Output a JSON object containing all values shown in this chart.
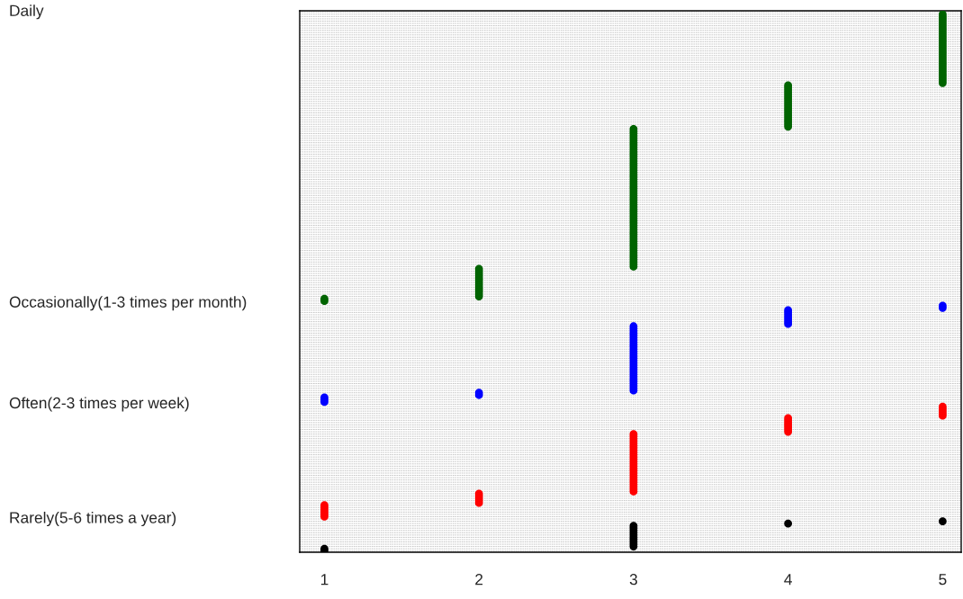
{
  "chart_data": {
    "type": "scatter",
    "orientation": "horizontal",
    "marker": "circle",
    "grid": "y",
    "xlim": [
      0.84,
      5.12
    ],
    "xticks": [
      1,
      2,
      3,
      4,
      5
    ],
    "categories": [
      "Daily",
      null,
      null,
      null,
      null,
      null,
      null,
      null,
      null,
      null,
      null,
      null,
      null,
      null,
      null,
      null,
      null,
      null,
      null,
      null,
      null,
      null,
      null,
      null,
      null,
      null,
      null,
      null,
      null,
      null,
      null,
      null,
      null,
      null,
      null,
      null,
      null,
      null,
      null,
      null,
      null,
      null,
      null,
      null,
      null,
      null,
      null,
      null,
      null,
      null,
      null,
      null,
      null,
      null,
      null,
      null,
      null,
      null,
      null,
      null,
      null,
      null,
      null,
      null,
      null,
      null,
      null,
      null,
      null,
      null,
      null,
      null,
      null,
      null,
      null,
      null,
      null,
      null,
      null,
      null,
      null,
      null,
      null,
      null,
      null,
      null,
      null,
      null,
      null,
      null,
      null,
      null,
      null,
      null,
      null,
      null,
      null,
      null,
      null,
      null,
      null,
      null,
      null,
      null,
      null,
      null,
      null,
      null,
      null,
      null,
      null,
      null,
      null,
      null,
      null,
      null,
      null,
      null,
      null,
      null,
      null,
      null,
      null,
      null,
      null,
      null,
      null,
      "Occasionally(1-3 times per month)",
      null,
      null,
      null,
      null,
      null,
      null,
      null,
      null,
      null,
      null,
      null,
      null,
      null,
      null,
      null,
      null,
      null,
      null,
      null,
      null,
      null,
      null,
      null,
      null,
      null,
      null,
      null,
      null,
      null,
      null,
      null,
      null,
      null,
      null,
      null,
      null,
      null,
      null,
      null,
      null,
      null,
      null,
      null,
      "Often(2-3 times per week)",
      null,
      null,
      null,
      null,
      null,
      null,
      null,
      null,
      null,
      null,
      null,
      null,
      null,
      null,
      null,
      null,
      null,
      null,
      null,
      null,
      null,
      null,
      null,
      null,
      null,
      null,
      null,
      null,
      null,
      null,
      null,
      null,
      null,
      null,
      null,
      null,
      null,
      null,
      null,
      null,
      null,
      null,
      null,
      null,
      null,
      null,
      null,
      null,
      null,
      "Rarely(5-6 times a year)",
      null,
      null,
      null,
      null,
      null,
      null,
      null,
      null,
      null,
      null,
      null,
      null,
      null,
      null
    ],
    "values": [
      null,
      5,
      5,
      5,
      5,
      5,
      5,
      5,
      5,
      5,
      5,
      5,
      5,
      5,
      5,
      5,
      5,
      5,
      5,
      5,
      5,
      5,
      5,
      5,
      5,
      5,
      5,
      5,
      5,
      5,
      5,
      5,
      4,
      4,
      4,
      4,
      4,
      4,
      4,
      4,
      4,
      4,
      4,
      4,
      4,
      4,
      4,
      4,
      4,
      4,
      4,
      3,
      3,
      3,
      3,
      3,
      3,
      3,
      3,
      3,
      3,
      3,
      3,
      3,
      3,
      3,
      3,
      3,
      3,
      3,
      3,
      3,
      3,
      3,
      3,
      3,
      3,
      3,
      3,
      3,
      3,
      3,
      3,
      3,
      3,
      3,
      3,
      3,
      3,
      3,
      3,
      3,
      3,
      3,
      3,
      3,
      3,
      3,
      3,
      3,
      3,
      3,
      3,
      3,
      3,
      3,
      3,
      3,
      3,
      3,
      3,
      3,
      2,
      2,
      2,
      2,
      2,
      2,
      2,
      2,
      2,
      2,
      2,
      2,
      2,
      1,
      1,
      null,
      5,
      5,
      4,
      4,
      4,
      4,
      4,
      4,
      4,
      3,
      3,
      3,
      3,
      3,
      3,
      3,
      3,
      3,
      3,
      3,
      3,
      3,
      3,
      3,
      3,
      3,
      3,
      3,
      3,
      3,
      3,
      3,
      3,
      3,
      3,
      3,
      3,
      3,
      2,
      2,
      1,
      1,
      1,
      null,
      5,
      5,
      5,
      5,
      5,
      4,
      4,
      4,
      4,
      4,
      4,
      4,
      3,
      3,
      3,
      3,
      3,
      3,
      3,
      3,
      3,
      3,
      3,
      3,
      3,
      3,
      3,
      3,
      3,
      3,
      3,
      3,
      3,
      3,
      3,
      3,
      3,
      3,
      2,
      2,
      2,
      2,
      2,
      1,
      1,
      1,
      1,
      1,
      1,
      null,
      5,
      4,
      3,
      3,
      3,
      3,
      3,
      3,
      3,
      3,
      3,
      3,
      1,
      1
    ],
    "colors": [
      null,
      "#006400",
      "#006400",
      "#006400",
      "#006400",
      "#006400",
      "#006400",
      "#006400",
      "#006400",
      "#006400",
      "#006400",
      "#006400",
      "#006400",
      "#006400",
      "#006400",
      "#006400",
      "#006400",
      "#006400",
      "#006400",
      "#006400",
      "#006400",
      "#006400",
      "#006400",
      "#006400",
      "#006400",
      "#006400",
      "#006400",
      "#006400",
      "#006400",
      "#006400",
      "#006400",
      "#006400",
      "#006400",
      "#006400",
      "#006400",
      "#006400",
      "#006400",
      "#006400",
      "#006400",
      "#006400",
      "#006400",
      "#006400",
      "#006400",
      "#006400",
      "#006400",
      "#006400",
      "#006400",
      "#006400",
      "#006400",
      "#006400",
      "#006400",
      "#006400",
      "#006400",
      "#006400",
      "#006400",
      "#006400",
      "#006400",
      "#006400",
      "#006400",
      "#006400",
      "#006400",
      "#006400",
      "#006400",
      "#006400",
      "#006400",
      "#006400",
      "#006400",
      "#006400",
      "#006400",
      "#006400",
      "#006400",
      "#006400",
      "#006400",
      "#006400",
      "#006400",
      "#006400",
      "#006400",
      "#006400",
      "#006400",
      "#006400",
      "#006400",
      "#006400",
      "#006400",
      "#006400",
      "#006400",
      "#006400",
      "#006400",
      "#006400",
      "#006400",
      "#006400",
      "#006400",
      "#006400",
      "#006400",
      "#006400",
      "#006400",
      "#006400",
      "#006400",
      "#006400",
      "#006400",
      "#006400",
      "#006400",
      "#006400",
      "#006400",
      "#006400",
      "#006400",
      "#006400",
      "#006400",
      "#006400",
      "#006400",
      "#006400",
      "#006400",
      "#006400",
      "#006400",
      "#006400",
      "#006400",
      "#006400",
      "#006400",
      "#006400",
      "#006400",
      "#006400",
      "#006400",
      "#006400",
      "#006400",
      "#006400",
      "#006400",
      "#006400",
      "#006400",
      null,
      "#0000ff",
      "#0000ff",
      "#0000ff",
      "#0000ff",
      "#0000ff",
      "#0000ff",
      "#0000ff",
      "#0000ff",
      "#0000ff",
      "#0000ff",
      "#0000ff",
      "#0000ff",
      "#0000ff",
      "#0000ff",
      "#0000ff",
      "#0000ff",
      "#0000ff",
      "#0000ff",
      "#0000ff",
      "#0000ff",
      "#0000ff",
      "#0000ff",
      "#0000ff",
      "#0000ff",
      "#0000ff",
      "#0000ff",
      "#0000ff",
      "#0000ff",
      "#0000ff",
      "#0000ff",
      "#0000ff",
      "#0000ff",
      "#0000ff",
      "#0000ff",
      "#0000ff",
      "#0000ff",
      "#0000ff",
      "#0000ff",
      "#0000ff",
      "#0000ff",
      "#0000ff",
      "#0000ff",
      "#0000ff",
      null,
      "#ff0000",
      "#ff0000",
      "#ff0000",
      "#ff0000",
      "#ff0000",
      "#ff0000",
      "#ff0000",
      "#ff0000",
      "#ff0000",
      "#ff0000",
      "#ff0000",
      "#ff0000",
      "#ff0000",
      "#ff0000",
      "#ff0000",
      "#ff0000",
      "#ff0000",
      "#ff0000",
      "#ff0000",
      "#ff0000",
      "#ff0000",
      "#ff0000",
      "#ff0000",
      "#ff0000",
      "#ff0000",
      "#ff0000",
      "#ff0000",
      "#ff0000",
      "#ff0000",
      "#ff0000",
      "#ff0000",
      "#ff0000",
      "#ff0000",
      "#ff0000",
      "#ff0000",
      "#ff0000",
      "#ff0000",
      "#ff0000",
      "#ff0000",
      "#ff0000",
      "#ff0000",
      "#ff0000",
      "#ff0000",
      "#ff0000",
      "#ff0000",
      "#ff0000",
      "#ff0000",
      "#ff0000",
      "#ff0000",
      null,
      "#000000",
      "#000000",
      "#000000",
      "#000000",
      "#000000",
      "#000000",
      "#000000",
      "#000000",
      "#000000",
      "#000000",
      "#000000",
      "#000000",
      "#000000",
      "#000000"
    ]
  }
}
